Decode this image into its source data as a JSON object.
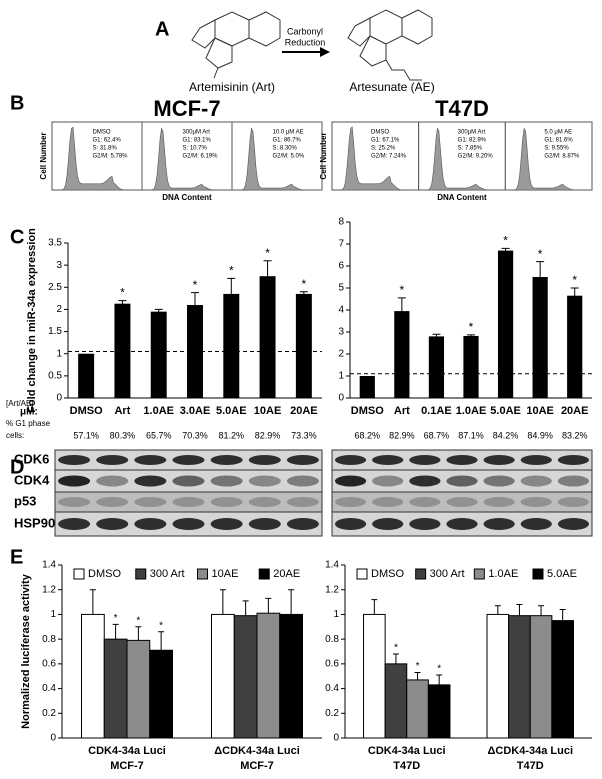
{
  "panel_labels": [
    "A",
    "B",
    "C",
    "D",
    "E"
  ],
  "panel_a": {
    "compound_1": "Artemisinin (Art)",
    "reaction": [
      "Carbonyl",
      "Reduction"
    ],
    "compound_2": "Artesunate (AE)"
  },
  "panel_b": {
    "cell_lines": [
      "MCF-7",
      "T47D"
    ],
    "y_label": "Cell Number",
    "x_label": "DNA Content",
    "panels": [
      [
        [
          "DMSO",
          "G1: 62.4%",
          "S: 31.8%",
          "G2/M: 5.78%"
        ],
        [
          "300μM Art",
          "G1: 83.1%",
          "S: 10.7%",
          "G2/M: 6.19%"
        ],
        [
          "10.0 μM AE",
          "G1: 86.7%",
          "S: 8.30%",
          "G2/M: 5.0%"
        ]
      ],
      [
        [
          "DMSO",
          "G1: 67.1%",
          "S: 25.2%",
          "G2/M: 7.24%"
        ],
        [
          "300μM Art",
          "G1: 82.9%",
          "S: 7.85%",
          "G2/M: 9.20%"
        ],
        [
          "5.0 μM AE",
          "G1: 81.6%",
          "S: 9.55%",
          "G2/M: 8.87%"
        ]
      ]
    ]
  },
  "panel_c_row_labels": [
    "[Art/AE]",
    "μM:",
    "% G1 phase",
    "cells:"
  ],
  "panel_d": {
    "proteins": [
      "CDK6",
      "CDK4",
      "p53",
      "HSP90"
    ]
  },
  "chart_data": [
    {
      "type": "bar",
      "ylabel": "Fold change in miR-34a expression",
      "categories": [
        "DMSO",
        "Art",
        "1.0AE",
        "3.0AE",
        "5.0AE",
        "10AE",
        "20AE"
      ],
      "values": [
        1,
        2.13,
        1.95,
        2.1,
        2.35,
        2.75,
        2.35
      ],
      "errors": [
        0,
        0.07,
        0.05,
        0.28,
        0.35,
        0.35,
        0.05
      ],
      "significant": [
        false,
        true,
        false,
        true,
        true,
        true,
        true
      ],
      "marker": "*",
      "g1_cells": [
        "57.1%",
        "80.3%",
        "65.7%",
        "70.3%",
        "81.2%",
        "82.9%",
        "73.3%"
      ],
      "reference_line": 1.05,
      "color": "#000000",
      "ylim": [
        0,
        3.5
      ],
      "yticks": [
        0,
        0.5,
        1,
        1.5,
        2,
        2.5,
        3,
        3.5
      ]
    },
    {
      "type": "bar",
      "categories": [
        "DMSO",
        "Art",
        "0.1AE",
        "1.0AE",
        "5.0AE",
        "10AE",
        "20AE"
      ],
      "values": [
        1,
        3.95,
        2.8,
        2.82,
        6.7,
        5.5,
        4.65
      ],
      "errors": [
        0,
        0.6,
        0.1,
        0.05,
        0.1,
        0.7,
        0.35
      ],
      "significant": [
        false,
        true,
        false,
        true,
        true,
        true,
        true
      ],
      "marker": "*",
      "g1_cells": [
        "68.2%",
        "82.9%",
        "68.7%",
        "87.1%",
        "84.2%",
        "84.9%",
        "83.2%"
      ],
      "reference_line": 1.1,
      "color": "#000000",
      "ylim": [
        0,
        8
      ],
      "yticks": [
        0,
        1,
        2,
        3,
        4,
        5,
        6,
        7,
        8
      ]
    },
    {
      "type": "grouped_bar",
      "ylabel": "Normalized luciferase activity",
      "categories": [
        "CDK4-34a Luci",
        "ΔCDK4-34a Luci"
      ],
      "group_sublabel": "MCF-7",
      "marker": "*",
      "series": [
        {
          "name": "DMSO",
          "color": "#ffffff",
          "values": [
            1.0,
            1.0
          ],
          "errors": [
            0.2,
            0.2
          ],
          "significant": [
            false,
            false
          ]
        },
        {
          "name": "300 Art",
          "color": "#404040",
          "values": [
            0.8,
            0.99
          ],
          "errors": [
            0.12,
            0.12
          ],
          "significant": [
            true,
            false
          ]
        },
        {
          "name": "10AE",
          "color": "#8c8c8c",
          "values": [
            0.79,
            1.01
          ],
          "errors": [
            0.11,
            0.12
          ],
          "significant": [
            true,
            false
          ]
        },
        {
          "name": "20AE",
          "color": "#000000",
          "values": [
            0.71,
            1.0
          ],
          "errors": [
            0.15,
            0.2
          ],
          "significant": [
            true,
            false
          ]
        }
      ],
      "ylim": [
        0,
        1.4
      ],
      "yticks": [
        0,
        0.2,
        0.4,
        0.6,
        0.8,
        1,
        1.2,
        1.4
      ]
    },
    {
      "type": "grouped_bar",
      "categories": [
        "CDK4-34a Luci",
        "ΔCDK4-34a Luci"
      ],
      "group_sublabel": "T47D",
      "marker": "*",
      "series": [
        {
          "name": "DMSO",
          "color": "#ffffff",
          "values": [
            1.0,
            1.0
          ],
          "errors": [
            0.12,
            0.07
          ],
          "significant": [
            false,
            false
          ]
        },
        {
          "name": "300 Art",
          "color": "#404040",
          "values": [
            0.6,
            0.99
          ],
          "errors": [
            0.08,
            0.09
          ],
          "significant": [
            true,
            false
          ]
        },
        {
          "name": "1.0AE",
          "color": "#8c8c8c",
          "values": [
            0.47,
            0.99
          ],
          "errors": [
            0.06,
            0.08
          ],
          "significant": [
            true,
            false
          ]
        },
        {
          "name": "5.0AE",
          "color": "#000000",
          "values": [
            0.43,
            0.95
          ],
          "errors": [
            0.08,
            0.09
          ],
          "significant": [
            true,
            false
          ]
        }
      ],
      "ylim": [
        0,
        1.4
      ],
      "yticks": [
        0,
        0.2,
        0.4,
        0.6,
        0.8,
        1,
        1.2,
        1.4
      ]
    }
  ]
}
